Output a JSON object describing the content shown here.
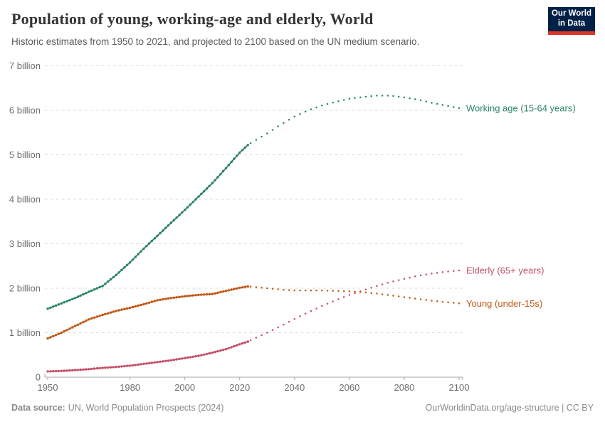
{
  "header": {
    "title": "Population of young, working-age and elderly, World",
    "subtitle": "Historic estimates from 1950 to 2021, and projected to 2100 based on the UN medium scenario.",
    "logo": {
      "line1": "Our World",
      "line2": "in Data",
      "bg_color": "#002147",
      "bar_color": "#dc352a"
    }
  },
  "chart_data": {
    "type": "line",
    "title": "Population of young, working-age and elderly, World",
    "xlabel": "",
    "ylabel": "",
    "x_range": [
      1949,
      2101.5
    ],
    "ylim": [
      0,
      7
    ],
    "grid": true,
    "unit": "billion people",
    "projection_start_year": 2024,
    "x_ticks": [
      1950,
      1980,
      2000,
      2020,
      2040,
      2060,
      2080,
      2100
    ],
    "y_ticks": [
      {
        "value": 0,
        "label": "0"
      },
      {
        "value": 1,
        "label": "1 billion"
      },
      {
        "value": 2,
        "label": "2 billion"
      },
      {
        "value": 3,
        "label": "3 billion"
      },
      {
        "value": 4,
        "label": "4 billion"
      },
      {
        "value": 5,
        "label": "5 billion"
      },
      {
        "value": 6,
        "label": "6 billion"
      },
      {
        "value": 7,
        "label": "7 billion"
      }
    ],
    "legend_position": "right-of-line-ends",
    "series": [
      {
        "id": "working-age",
        "name": "Working age (15-64 years)",
        "color": "#2C8465",
        "points": [
          [
            1950,
            1.54
          ],
          [
            1955,
            1.66
          ],
          [
            1960,
            1.78
          ],
          [
            1965,
            1.92
          ],
          [
            1970,
            2.05
          ],
          [
            1975,
            2.3
          ],
          [
            1980,
            2.58
          ],
          [
            1985,
            2.89
          ],
          [
            1990,
            3.18
          ],
          [
            1995,
            3.47
          ],
          [
            2000,
            3.76
          ],
          [
            2005,
            4.06
          ],
          [
            2010,
            4.36
          ],
          [
            2015,
            4.7
          ],
          [
            2020,
            5.05
          ],
          [
            2023,
            5.22
          ],
          [
            2025,
            5.3
          ],
          [
            2030,
            5.48
          ],
          [
            2035,
            5.68
          ],
          [
            2040,
            5.86
          ],
          [
            2045,
            6.0
          ],
          [
            2050,
            6.11
          ],
          [
            2055,
            6.19
          ],
          [
            2060,
            6.26
          ],
          [
            2065,
            6.3
          ],
          [
            2070,
            6.33
          ],
          [
            2075,
            6.33
          ],
          [
            2080,
            6.29
          ],
          [
            2085,
            6.24
          ],
          [
            2090,
            6.17
          ],
          [
            2095,
            6.11
          ],
          [
            2100,
            6.05
          ]
        ]
      },
      {
        "id": "elderly",
        "name": "Elderly (65+ years)",
        "color": "#C25168",
        "points": [
          [
            1950,
            0.13
          ],
          [
            1955,
            0.14
          ],
          [
            1960,
            0.16
          ],
          [
            1965,
            0.18
          ],
          [
            1970,
            0.21
          ],
          [
            1975,
            0.23
          ],
          [
            1980,
            0.26
          ],
          [
            1985,
            0.3
          ],
          [
            1990,
            0.34
          ],
          [
            1995,
            0.38
          ],
          [
            2000,
            0.43
          ],
          [
            2005,
            0.48
          ],
          [
            2010,
            0.55
          ],
          [
            2015,
            0.63
          ],
          [
            2020,
            0.74
          ],
          [
            2023,
            0.8
          ],
          [
            2025,
            0.86
          ],
          [
            2030,
            1.0
          ],
          [
            2035,
            1.15
          ],
          [
            2040,
            1.31
          ],
          [
            2045,
            1.46
          ],
          [
            2050,
            1.6
          ],
          [
            2055,
            1.73
          ],
          [
            2060,
            1.85
          ],
          [
            2065,
            1.95
          ],
          [
            2070,
            2.05
          ],
          [
            2075,
            2.14
          ],
          [
            2080,
            2.21
          ],
          [
            2085,
            2.28
          ],
          [
            2090,
            2.33
          ],
          [
            2095,
            2.37
          ],
          [
            2100,
            2.4
          ]
        ]
      },
      {
        "id": "young",
        "name": "Young (under-15s)",
        "color": "#C05917",
        "points": [
          [
            1950,
            0.87
          ],
          [
            1955,
            1.0
          ],
          [
            1960,
            1.15
          ],
          [
            1965,
            1.3
          ],
          [
            1970,
            1.4
          ],
          [
            1975,
            1.49
          ],
          [
            1980,
            1.56
          ],
          [
            1985,
            1.64
          ],
          [
            1990,
            1.73
          ],
          [
            1995,
            1.78
          ],
          [
            2000,
            1.82
          ],
          [
            2005,
            1.85
          ],
          [
            2010,
            1.87
          ],
          [
            2015,
            1.94
          ],
          [
            2020,
            2.01
          ],
          [
            2023,
            2.04
          ],
          [
            2025,
            2.03
          ],
          [
            2030,
            2.0
          ],
          [
            2035,
            1.97
          ],
          [
            2040,
            1.95
          ],
          [
            2045,
            1.95
          ],
          [
            2050,
            1.95
          ],
          [
            2055,
            1.94
          ],
          [
            2060,
            1.93
          ],
          [
            2065,
            1.91
          ],
          [
            2070,
            1.88
          ],
          [
            2075,
            1.84
          ],
          [
            2080,
            1.8
          ],
          [
            2085,
            1.76
          ],
          [
            2090,
            1.72
          ],
          [
            2095,
            1.69
          ],
          [
            2100,
            1.66
          ]
        ]
      }
    ]
  },
  "footer": {
    "source_label": "Data source:",
    "source_text": "UN, World Population Prospects (2024)",
    "link_text": "OurWorldinData.org/age-structure | CC BY"
  }
}
